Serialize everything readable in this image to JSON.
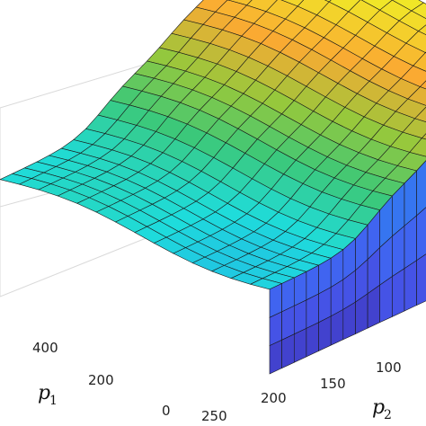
{
  "chart_data": {
    "type": "surface",
    "title": "",
    "zlabel": "",
    "x_axis": {
      "symbol": "p",
      "subscript": "1",
      "ticks": [
        "0",
        "200",
        "400"
      ]
    },
    "y_axis": {
      "symbol": "p",
      "subscript": "2",
      "ticks": [
        "250",
        "200",
        "150",
        "100"
      ]
    },
    "grid": true,
    "colormap": "parula",
    "description_levels": {
      "low_plateau": 0.42,
      "mid_step": 0.6,
      "upper_ridge": 0.78,
      "top_ridge": 0.92
    }
  }
}
